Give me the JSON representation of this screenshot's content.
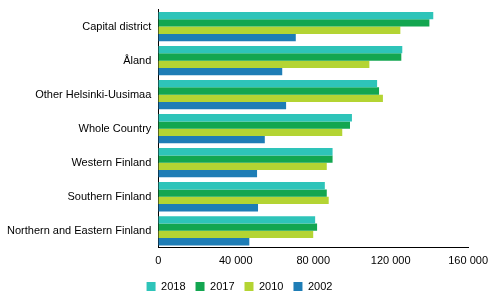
{
  "chart_data": {
    "type": "bar",
    "orientation": "horizontal",
    "categories": [
      "Capital district",
      "Åland",
      "Other Helsinki-Uusimaa",
      "Whole Country",
      "Western Finland",
      "Southern Finland",
      "Northern and Eastern Finland"
    ],
    "series": [
      {
        "name": "2018",
        "color": "#2ec4b9",
        "values": [
          142000,
          126000,
          113000,
          100000,
          90000,
          86000,
          81000
        ]
      },
      {
        "name": "2017",
        "color": "#13a650",
        "values": [
          140000,
          125500,
          114000,
          99000,
          90000,
          87000,
          82000
        ]
      },
      {
        "name": "2010",
        "color": "#b4d433",
        "values": [
          125000,
          109000,
          116000,
          95000,
          87000,
          88000,
          80000
        ]
      },
      {
        "name": "2002",
        "color": "#1e7db6",
        "values": [
          71000,
          64000,
          66000,
          55000,
          51000,
          51500,
          47000
        ]
      }
    ],
    "xlim": [
      0,
      160000
    ],
    "xticks": [
      0,
      {
        "value": 40000,
        "label": "40 000"
      },
      {
        "value": 80000,
        "label": "80 000"
      },
      {
        "value": 120000,
        "label": "120 000"
      },
      {
        "value": 160000,
        "label": "160 000"
      }
    ],
    "grid": false,
    "legend": "bottom"
  }
}
